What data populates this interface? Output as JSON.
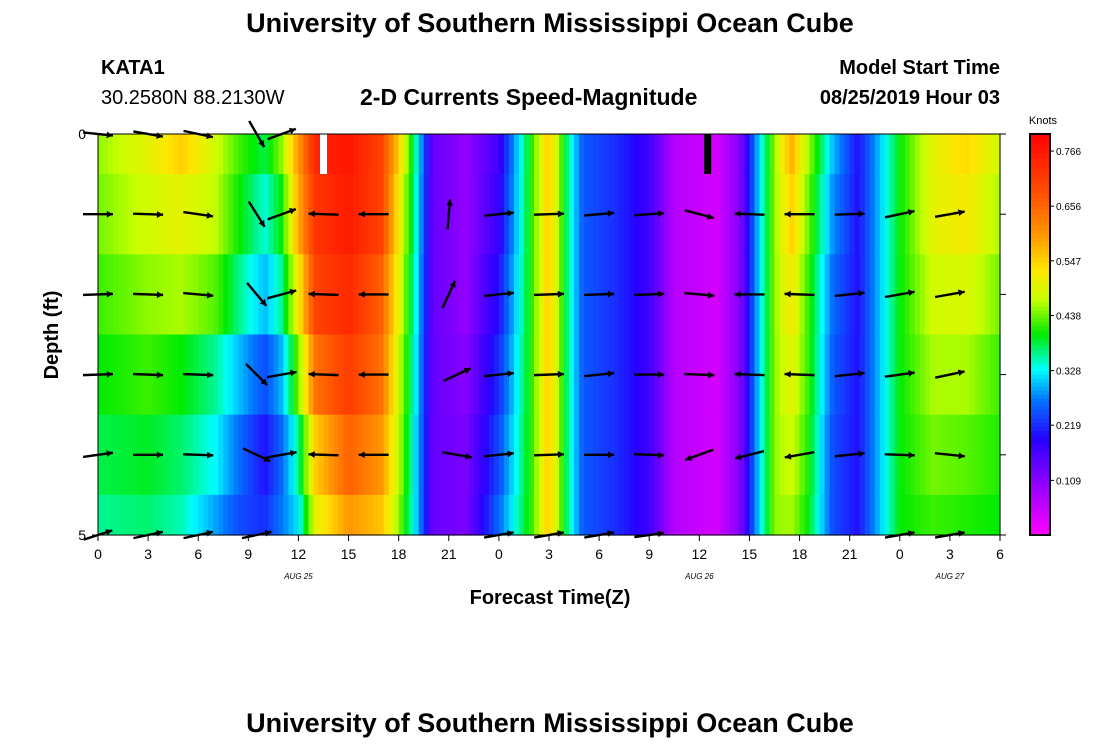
{
  "header": {
    "title": "University of Southern Mississippi Ocean Cube",
    "station_id": "KATA1",
    "coords": "30.2580N 88.2130W",
    "plot_title": "2-D Currents Speed-Magnitude",
    "model_start_label": "Model Start Time",
    "model_start_value": "08/25/2019 Hour 03"
  },
  "footer": {
    "title": "University of Southern Mississippi Ocean Cube"
  },
  "chart_data": {
    "type": "heatmap",
    "subtype": "time-depth speed heatmap with current vectors",
    "title": "2-D Currents Speed-Magnitude",
    "xlabel": "Forecast Time(Z)",
    "ylabel": "Depth (ft)",
    "x_unit": "hours since 08/25/2019 00Z",
    "xlim": [
      0,
      54
    ],
    "ylim": [
      0,
      5
    ],
    "x_ticks": [
      0,
      3,
      6,
      9,
      12,
      15,
      18,
      21,
      24,
      27,
      30,
      33,
      36,
      39,
      42,
      45,
      48,
      51,
      54
    ],
    "x_tick_labels": [
      "0",
      "3",
      "6",
      "9",
      "12",
      "15",
      "18",
      "21",
      "0",
      "3",
      "6",
      "9",
      "12",
      "15",
      "18",
      "21",
      "0",
      "3",
      "6"
    ],
    "date_labels": [
      {
        "x": 12,
        "label": "AUG 25"
      },
      {
        "x": 36,
        "label": "AUG 26"
      },
      {
        "x": 51,
        "label": "AUG 27"
      }
    ],
    "y_tick_labels": [
      {
        "y": 0,
        "label": "0"
      },
      {
        "y": 5,
        "label": "5"
      }
    ],
    "colorbar": {
      "label": "Knots",
      "min": 0.0,
      "max": 0.8,
      "ticks": [
        "0.766",
        "0.656",
        "0.547",
        "0.438",
        "0.328",
        "0.219",
        "0.109"
      ],
      "tick_values": [
        0.766,
        0.656,
        0.547,
        0.438,
        0.328,
        0.219,
        0.109
      ]
    },
    "depth_levels": [
      0,
      1,
      2,
      3,
      4,
      5
    ],
    "speed_columns": [
      {
        "t": 0,
        "s": [
          0.45,
          0.44,
          0.42,
          0.4,
          0.38,
          0.36
        ]
      },
      {
        "t": 3,
        "s": [
          0.5,
          0.48,
          0.45,
          0.42,
          0.39,
          0.37
        ]
      },
      {
        "t": 5,
        "s": [
          0.55,
          0.5,
          0.46,
          0.4,
          0.37,
          0.35
        ]
      },
      {
        "t": 7,
        "s": [
          0.48,
          0.47,
          0.43,
          0.36,
          0.33,
          0.29
        ]
      },
      {
        "t": 8.5,
        "s": [
          0.42,
          0.4,
          0.36,
          0.3,
          0.26,
          0.24
        ]
      },
      {
        "t": 10,
        "s": [
          0.38,
          0.34,
          0.3,
          0.24,
          0.2,
          0.22
        ]
      },
      {
        "t": 11,
        "s": [
          0.45,
          0.4,
          0.36,
          0.3,
          0.26,
          0.27
        ]
      },
      {
        "t": 12,
        "s": [
          0.6,
          0.58,
          0.52,
          0.44,
          0.36,
          0.32
        ]
      },
      {
        "t": 13,
        "s": [
          0.74,
          0.72,
          0.7,
          0.64,
          0.55,
          0.5
        ]
      },
      {
        "t": 15,
        "s": [
          0.77,
          0.76,
          0.74,
          0.71,
          0.66,
          0.6
        ]
      },
      {
        "t": 17,
        "s": [
          0.7,
          0.7,
          0.66,
          0.64,
          0.6,
          0.56
        ]
      },
      {
        "t": 18,
        "s": [
          0.55,
          0.52,
          0.5,
          0.48,
          0.47,
          0.45
        ]
      },
      {
        "t": 19,
        "s": [
          0.36,
          0.35,
          0.34,
          0.33,
          0.32,
          0.32
        ]
      },
      {
        "t": 20,
        "s": [
          0.14,
          0.14,
          0.14,
          0.14,
          0.14,
          0.14
        ]
      },
      {
        "t": 22,
        "s": [
          0.1,
          0.1,
          0.1,
          0.11,
          0.12,
          0.12
        ]
      },
      {
        "t": 24,
        "s": [
          0.17,
          0.18,
          0.2,
          0.22,
          0.24,
          0.26
        ]
      },
      {
        "t": 26,
        "s": [
          0.42,
          0.42,
          0.42,
          0.42,
          0.42,
          0.42
        ]
      },
      {
        "t": 27,
        "s": [
          0.56,
          0.56,
          0.56,
          0.56,
          0.56,
          0.56
        ]
      },
      {
        "t": 28,
        "s": [
          0.38,
          0.38,
          0.38,
          0.38,
          0.38,
          0.38
        ]
      },
      {
        "t": 29,
        "s": [
          0.25,
          0.25,
          0.25,
          0.25,
          0.25,
          0.25
        ]
      },
      {
        "t": 31,
        "s": [
          0.22,
          0.22,
          0.22,
          0.22,
          0.22,
          0.22
        ]
      },
      {
        "t": 33,
        "s": [
          0.17,
          0.17,
          0.17,
          0.17,
          0.17,
          0.17
        ]
      },
      {
        "t": 34.5,
        "s": [
          0.07,
          0.07,
          0.07,
          0.07,
          0.07,
          0.07
        ]
      },
      {
        "t": 37,
        "s": [
          0.04,
          0.04,
          0.04,
          0.04,
          0.04,
          0.04
        ]
      },
      {
        "t": 38.5,
        "s": [
          0.12,
          0.12,
          0.12,
          0.12,
          0.12,
          0.12
        ]
      },
      {
        "t": 39.5,
        "s": [
          0.3,
          0.3,
          0.3,
          0.3,
          0.3,
          0.3
        ]
      },
      {
        "t": 40.5,
        "s": [
          0.45,
          0.45,
          0.45,
          0.45,
          0.45,
          0.45
        ]
      },
      {
        "t": 41.5,
        "s": [
          0.58,
          0.55,
          0.52,
          0.5,
          0.48,
          0.46
        ]
      },
      {
        "t": 42.5,
        "s": [
          0.46,
          0.44,
          0.42,
          0.42,
          0.41,
          0.4
        ]
      },
      {
        "t": 44,
        "s": [
          0.3,
          0.28,
          0.26,
          0.25,
          0.24,
          0.24
        ]
      },
      {
        "t": 45.5,
        "s": [
          0.2,
          0.2,
          0.2,
          0.2,
          0.2,
          0.2
        ]
      },
      {
        "t": 47,
        "s": [
          0.32,
          0.32,
          0.32,
          0.32,
          0.32,
          0.32
        ]
      },
      {
        "t": 48,
        "s": [
          0.4,
          0.4,
          0.4,
          0.4,
          0.4,
          0.4
        ]
      },
      {
        "t": 50,
        "s": [
          0.5,
          0.5,
          0.48,
          0.46,
          0.44,
          0.42
        ]
      },
      {
        "t": 52,
        "s": [
          0.54,
          0.52,
          0.49,
          0.46,
          0.43,
          0.41
        ]
      },
      {
        "t": 54,
        "s": [
          0.48,
          0.46,
          0.44,
          0.42,
          0.41,
          0.4
        ]
      }
    ],
    "vectors": [
      {
        "t": 0,
        "d": 0,
        "dir": 96
      },
      {
        "t": 3,
        "d": 0,
        "dir": 100
      },
      {
        "t": 6,
        "d": 0,
        "dir": 102
      },
      {
        "t": 9.5,
        "d": 0,
        "dir": 150
      },
      {
        "t": 11,
        "d": 0,
        "dir": 70
      },
      {
        "t": 0,
        "d": 1,
        "dir": 90
      },
      {
        "t": 3,
        "d": 1,
        "dir": 92
      },
      {
        "t": 6,
        "d": 1,
        "dir": 98
      },
      {
        "t": 9.5,
        "d": 1,
        "dir": 148
      },
      {
        "t": 11,
        "d": 1,
        "dir": 70
      },
      {
        "t": 13.5,
        "d": 1,
        "dir": 272
      },
      {
        "t": 16.5,
        "d": 1,
        "dir": 270
      },
      {
        "t": 21,
        "d": 1,
        "dir": 5
      },
      {
        "t": 24,
        "d": 1,
        "dir": 84
      },
      {
        "t": 27,
        "d": 1,
        "dir": 88
      },
      {
        "t": 30,
        "d": 1,
        "dir": 85
      },
      {
        "t": 33,
        "d": 1,
        "dir": 86
      },
      {
        "t": 36,
        "d": 1,
        "dir": 105
      },
      {
        "t": 39,
        "d": 1,
        "dir": 272
      },
      {
        "t": 42,
        "d": 1,
        "dir": 270
      },
      {
        "t": 45,
        "d": 1,
        "dir": 88
      },
      {
        "t": 48,
        "d": 1,
        "dir": 78
      },
      {
        "t": 51,
        "d": 1,
        "dir": 80
      },
      {
        "t": 0,
        "d": 2,
        "dir": 88
      },
      {
        "t": 3,
        "d": 2,
        "dir": 92
      },
      {
        "t": 6,
        "d": 2,
        "dir": 95
      },
      {
        "t": 9.5,
        "d": 2,
        "dir": 140
      },
      {
        "t": 11,
        "d": 2,
        "dir": 75
      },
      {
        "t": 13.5,
        "d": 2,
        "dir": 272
      },
      {
        "t": 16.5,
        "d": 2,
        "dir": 270
      },
      {
        "t": 21,
        "d": 2,
        "dir": 25
      },
      {
        "t": 24,
        "d": 2,
        "dir": 84
      },
      {
        "t": 27,
        "d": 2,
        "dir": 88
      },
      {
        "t": 30,
        "d": 2,
        "dir": 88
      },
      {
        "t": 33,
        "d": 2,
        "dir": 88
      },
      {
        "t": 36,
        "d": 2,
        "dir": 95
      },
      {
        "t": 39,
        "d": 2,
        "dir": 270
      },
      {
        "t": 42,
        "d": 2,
        "dir": 272
      },
      {
        "t": 45,
        "d": 2,
        "dir": 84
      },
      {
        "t": 48,
        "d": 2,
        "dir": 80
      },
      {
        "t": 51,
        "d": 2,
        "dir": 80
      },
      {
        "t": 0,
        "d": 3,
        "dir": 88
      },
      {
        "t": 3,
        "d": 3,
        "dir": 92
      },
      {
        "t": 6,
        "d": 3,
        "dir": 92
      },
      {
        "t": 9.5,
        "d": 3,
        "dir": 135
      },
      {
        "t": 11,
        "d": 3,
        "dir": 80
      },
      {
        "t": 13.5,
        "d": 3,
        "dir": 272
      },
      {
        "t": 16.5,
        "d": 3,
        "dir": 270
      },
      {
        "t": 21.5,
        "d": 3,
        "dir": 65
      },
      {
        "t": 24,
        "d": 3,
        "dir": 84
      },
      {
        "t": 27,
        "d": 3,
        "dir": 88
      },
      {
        "t": 30,
        "d": 3,
        "dir": 84
      },
      {
        "t": 33,
        "d": 3,
        "dir": 90
      },
      {
        "t": 36,
        "d": 3,
        "dir": 92
      },
      {
        "t": 39,
        "d": 3,
        "dir": 272
      },
      {
        "t": 42,
        "d": 3,
        "dir": 272
      },
      {
        "t": 45,
        "d": 3,
        "dir": 84
      },
      {
        "t": 48,
        "d": 3,
        "dir": 82
      },
      {
        "t": 51,
        "d": 3,
        "dir": 78
      },
      {
        "t": 0,
        "d": 4,
        "dir": 82
      },
      {
        "t": 3,
        "d": 4,
        "dir": 90
      },
      {
        "t": 6,
        "d": 4,
        "dir": 92
      },
      {
        "t": 9.5,
        "d": 4,
        "dir": 115
      },
      {
        "t": 11,
        "d": 4,
        "dir": 80
      },
      {
        "t": 13.5,
        "d": 4,
        "dir": 272
      },
      {
        "t": 16.5,
        "d": 4,
        "dir": 270
      },
      {
        "t": 21.5,
        "d": 4,
        "dir": 100
      },
      {
        "t": 24,
        "d": 4,
        "dir": 84
      },
      {
        "t": 27,
        "d": 4,
        "dir": 88
      },
      {
        "t": 30,
        "d": 4,
        "dir": 90
      },
      {
        "t": 33,
        "d": 4,
        "dir": 92
      },
      {
        "t": 36,
        "d": 4,
        "dir": 250
      },
      {
        "t": 39,
        "d": 4,
        "dir": 256
      },
      {
        "t": 42,
        "d": 4,
        "dir": 260
      },
      {
        "t": 45,
        "d": 4,
        "dir": 84
      },
      {
        "t": 48,
        "d": 4,
        "dir": 92
      },
      {
        "t": 51,
        "d": 4,
        "dir": 96
      },
      {
        "t": 0,
        "d": 5,
        "dir": 72
      },
      {
        "t": 3,
        "d": 5,
        "dir": 78
      },
      {
        "t": 6,
        "d": 5,
        "dir": 78
      },
      {
        "t": 9.5,
        "d": 5,
        "dir": 78
      },
      {
        "t": 24,
        "d": 5,
        "dir": 80
      },
      {
        "t": 27,
        "d": 5,
        "dir": 80
      },
      {
        "t": 30,
        "d": 5,
        "dir": 80
      },
      {
        "t": 33,
        "d": 5,
        "dir": 82
      },
      {
        "t": 48,
        "d": 5,
        "dir": 80
      },
      {
        "t": 51,
        "d": 5,
        "dir": 80
      }
    ],
    "markers": [
      {
        "t": 13.5,
        "color": "#ffffff",
        "label": "white marker at surface"
      },
      {
        "t": 36.5,
        "color": "#000000",
        "label": "black marker at surface"
      }
    ]
  }
}
